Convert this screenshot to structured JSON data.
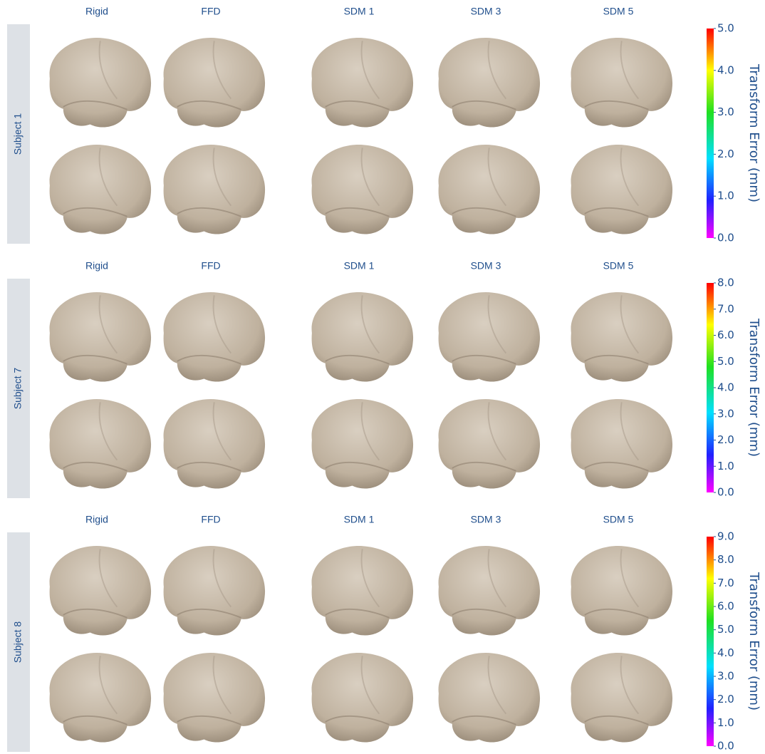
{
  "panels": [
    {
      "row_label": "Subject 1",
      "columns": [
        "Rigid",
        "FFD",
        "SDM 1",
        "SDM 3",
        "SDM 5"
      ],
      "colorbar": {
        "label": "Transform Error (mm)",
        "range": [
          0,
          5
        ],
        "ticks": [
          {
            "value": 0,
            "label": "0.0"
          },
          {
            "value": 1,
            "label": "1.0"
          },
          {
            "value": 2,
            "label": "2.0"
          },
          {
            "value": 3,
            "label": "3.0"
          },
          {
            "value": 4,
            "label": "4.0"
          },
          {
            "value": 5,
            "label": "5.0"
          }
        ]
      }
    },
    {
      "row_label": "Subject 7",
      "columns": [
        "Rigid",
        "FFD",
        "SDM 1",
        "SDM 3",
        "SDM 5"
      ],
      "colorbar": {
        "label": "Transform Error (mm)",
        "range": [
          0,
          8
        ],
        "ticks": [
          {
            "value": 0,
            "label": "0.0"
          },
          {
            "value": 1,
            "label": "1.0"
          },
          {
            "value": 2,
            "label": "2.0"
          },
          {
            "value": 3,
            "label": "3.0"
          },
          {
            "value": 4,
            "label": "4.0"
          },
          {
            "value": 5,
            "label": "5.0"
          },
          {
            "value": 6,
            "label": "6.0"
          },
          {
            "value": 7,
            "label": "7.0"
          },
          {
            "value": 8,
            "label": "8.0"
          }
        ]
      }
    },
    {
      "row_label": "Subject 8",
      "columns": [
        "Rigid",
        "FFD",
        "SDM 1",
        "SDM 3",
        "SDM 5"
      ],
      "colorbar": {
        "label": "Transform Error (mm)",
        "range": [
          0,
          9
        ],
        "ticks": [
          {
            "value": 0,
            "label": "0.0"
          },
          {
            "value": 1,
            "label": "1.0"
          },
          {
            "value": 2,
            "label": "2.0"
          },
          {
            "value": 3,
            "label": "3.0"
          },
          {
            "value": 4,
            "label": "4.0"
          },
          {
            "value": 5,
            "label": "5.0"
          },
          {
            "value": 6,
            "label": "6.0"
          },
          {
            "value": 7,
            "label": "7.0"
          },
          {
            "value": 8,
            "label": "8.0"
          },
          {
            "value": 9,
            "label": "9.0"
          }
        ]
      }
    }
  ]
}
